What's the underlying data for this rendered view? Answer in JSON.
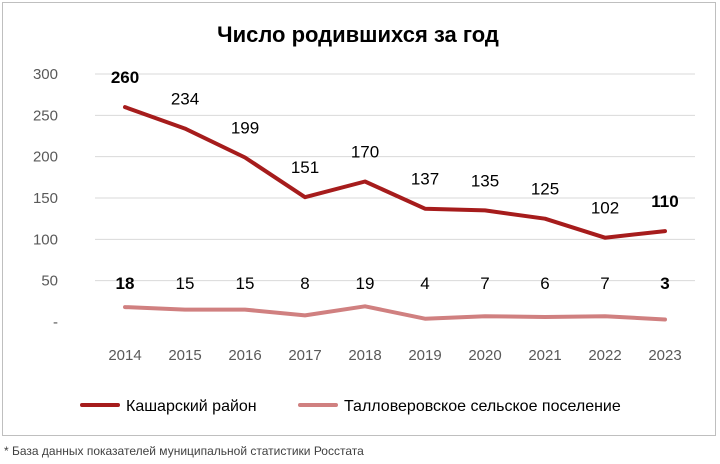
{
  "chart_data": {
    "type": "line",
    "title": "Число родившихся за год",
    "x": [
      "2014",
      "2015",
      "2016",
      "2017",
      "2018",
      "2019",
      "2020",
      "2021",
      "2022",
      "2023"
    ],
    "ylim": [
      0,
      300
    ],
    "yticks": [
      {
        "value": 0,
        "label": "-"
      },
      {
        "value": 50,
        "label": "50"
      },
      {
        "value": 100,
        "label": "100"
      },
      {
        "value": 150,
        "label": "150"
      },
      {
        "value": 200,
        "label": "200"
      },
      {
        "value": 250,
        "label": "250"
      },
      {
        "value": 300,
        "label": "300"
      }
    ],
    "grid": true,
    "legend": "bottom",
    "series": [
      {
        "name": "Кашарский район",
        "color": "#a61c1c",
        "values": [
          260,
          234,
          199,
          151,
          170,
          137,
          135,
          125,
          102,
          110
        ]
      },
      {
        "name": "Талловеровское сельское поселение",
        "color": "#d08080",
        "values": [
          18,
          15,
          15,
          8,
          19,
          4,
          7,
          6,
          7,
          3
        ]
      }
    ]
  },
  "footnote": "* База данных показателей муниципальной статистики Росстата"
}
